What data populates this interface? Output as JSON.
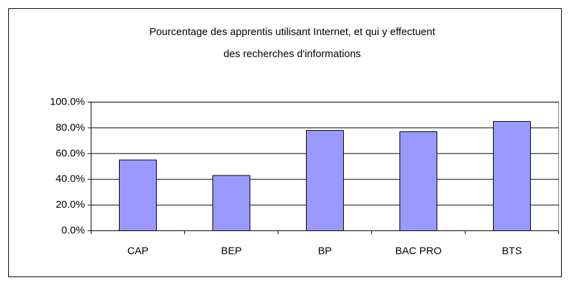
{
  "chart_data": {
    "type": "bar",
    "title": [
      "Pourcentage des apprentis utilisant Internet, et qui y effectuent",
      "des recherches d'informations"
    ],
    "categories": [
      "CAP",
      "BEP",
      "BP",
      "BAC PRO",
      "BTS"
    ],
    "values": [
      55,
      43,
      78,
      77,
      85
    ],
    "color": "#9999ff",
    "ylim": [
      0,
      100
    ],
    "yticks": [
      {
        "value": 0,
        "label": "0.0%"
      },
      {
        "value": 20,
        "label": "20.0%"
      },
      {
        "value": 40,
        "label": "40.0%"
      },
      {
        "value": 60,
        "label": "60.0%"
      },
      {
        "value": 80,
        "label": "80.0%"
      },
      {
        "value": 100,
        "label": "100.0%"
      }
    ],
    "grid": true
  }
}
